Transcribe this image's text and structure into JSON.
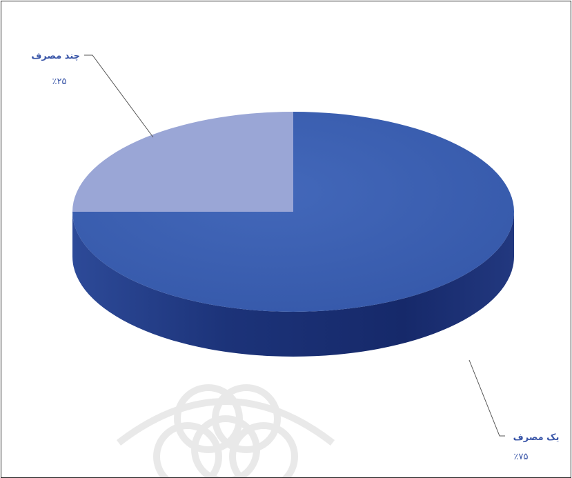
{
  "chart_data": {
    "type": "pie",
    "style": "3d",
    "title": "",
    "categories": [
      "یک مصرف",
      "چند مصرف"
    ],
    "values": [
      75,
      25
    ],
    "value_labels": [
      "٪۷۵",
      "٪۲۵"
    ],
    "colors": {
      "slice_main": "#3a5cb0",
      "slice_main_side": "#1f3a86",
      "slice_small": "#9aa6d6",
      "label_text": "#3a56a8",
      "leader_line": "#555555"
    },
    "legend": "none",
    "grid": false
  },
  "watermark": {
    "kind": "decorative-rosette"
  }
}
